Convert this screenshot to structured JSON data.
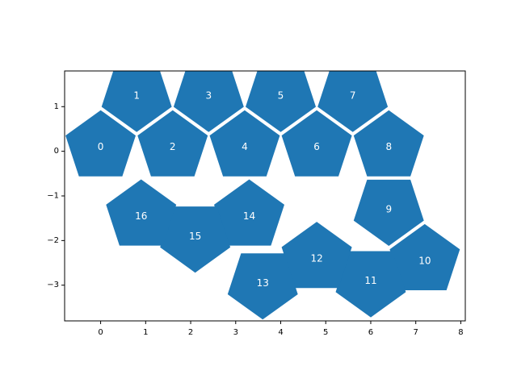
{
  "chart_data": {
    "type": "scatter",
    "title": "",
    "xlabel": "",
    "ylabel": "",
    "xlim": [
      -0.8,
      8.1
    ],
    "ylim": [
      -3.8,
      1.8
    ],
    "grid": false,
    "color": "#1f77b4",
    "label_color": "#ffffff",
    "x_ticks": [
      {
        "value": 0,
        "label": "0"
      },
      {
        "value": 1,
        "label": "1"
      },
      {
        "value": 2,
        "label": "2"
      },
      {
        "value": 3,
        "label": "3"
      },
      {
        "value": 4,
        "label": "4"
      },
      {
        "value": 5,
        "label": "5"
      },
      {
        "value": 6,
        "label": "6"
      },
      {
        "value": 7,
        "label": "7"
      },
      {
        "value": 8,
        "label": "8"
      }
    ],
    "y_ticks": [
      {
        "value": 1,
        "label": "1"
      },
      {
        "value": 0,
        "label": "0"
      },
      {
        "value": -1,
        "label": "−1"
      },
      {
        "value": -2,
        "label": "−2"
      },
      {
        "value": -3,
        "label": "−3"
      }
    ],
    "pentagons": [
      {
        "label": "0",
        "center": [
          0.0,
          0.1
        ],
        "circumradius": 0.82,
        "rotation_deg": 90
      },
      {
        "label": "1",
        "center": [
          0.8,
          1.25
        ],
        "circumradius": 0.82,
        "rotation_deg": 270
      },
      {
        "label": "2",
        "center": [
          1.6,
          0.1
        ],
        "circumradius": 0.82,
        "rotation_deg": 90
      },
      {
        "label": "3",
        "center": [
          2.4,
          1.25
        ],
        "circumradius": 0.82,
        "rotation_deg": 270
      },
      {
        "label": "4",
        "center": [
          3.2,
          0.1
        ],
        "circumradius": 0.82,
        "rotation_deg": 90
      },
      {
        "label": "5",
        "center": [
          4.0,
          1.25
        ],
        "circumradius": 0.82,
        "rotation_deg": 270
      },
      {
        "label": "6",
        "center": [
          4.8,
          0.1
        ],
        "circumradius": 0.82,
        "rotation_deg": 90
      },
      {
        "label": "7",
        "center": [
          5.6,
          1.25
        ],
        "circumradius": 0.82,
        "rotation_deg": 270
      },
      {
        "label": "8",
        "center": [
          6.4,
          0.1
        ],
        "circumradius": 0.82,
        "rotation_deg": 90
      },
      {
        "label": "9",
        "center": [
          6.4,
          -1.3
        ],
        "circumradius": 0.82,
        "rotation_deg": 270
      },
      {
        "label": "10",
        "center": [
          7.2,
          -2.45
        ],
        "circumradius": 0.82,
        "rotation_deg": 90
      },
      {
        "label": "11",
        "center": [
          6.0,
          -2.9
        ],
        "circumradius": 0.82,
        "rotation_deg": 270
      },
      {
        "label": "12",
        "center": [
          4.8,
          -2.4
        ],
        "circumradius": 0.82,
        "rotation_deg": 90
      },
      {
        "label": "13",
        "center": [
          3.6,
          -2.95
        ],
        "circumradius": 0.82,
        "rotation_deg": 270
      },
      {
        "label": "14",
        "center": [
          3.3,
          -1.45
        ],
        "circumradius": 0.82,
        "rotation_deg": 90
      },
      {
        "label": "15",
        "center": [
          2.1,
          -1.9
        ],
        "circumradius": 0.82,
        "rotation_deg": 270
      },
      {
        "label": "16",
        "center": [
          0.9,
          -1.45
        ],
        "circumradius": 0.82,
        "rotation_deg": 90
      }
    ]
  }
}
